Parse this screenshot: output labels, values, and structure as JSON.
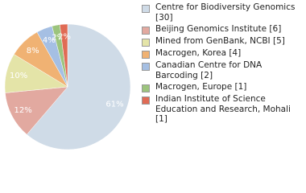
{
  "chart_data": {
    "type": "pie",
    "categories": [
      "Centre for Biodiversity Genomics [30]",
      "Beijing Genomics Institute [6]",
      "Mined from GenBank, NCBI [5]",
      "Macrogen, Korea [4]",
      "Canadian Centre for DNA Barcoding [2]",
      "Macrogen, Europe [1]",
      "Indian Institute of Science Education and Research, Mohali [1]"
    ],
    "values": [
      61.2,
      12.2,
      10.2,
      8.2,
      4.1,
      2.0,
      2.0
    ],
    "value_labels": [
      "61%",
      "12%",
      "10%",
      "8%",
      "4%",
      "2%",
      "2%"
    ],
    "colors": [
      "#cfdbe7",
      "#e2a9a0",
      "#e4e4a8",
      "#f0b273",
      "#a5bfe3",
      "#9cc47d",
      "#e06b55"
    ],
    "legend": "right"
  }
}
